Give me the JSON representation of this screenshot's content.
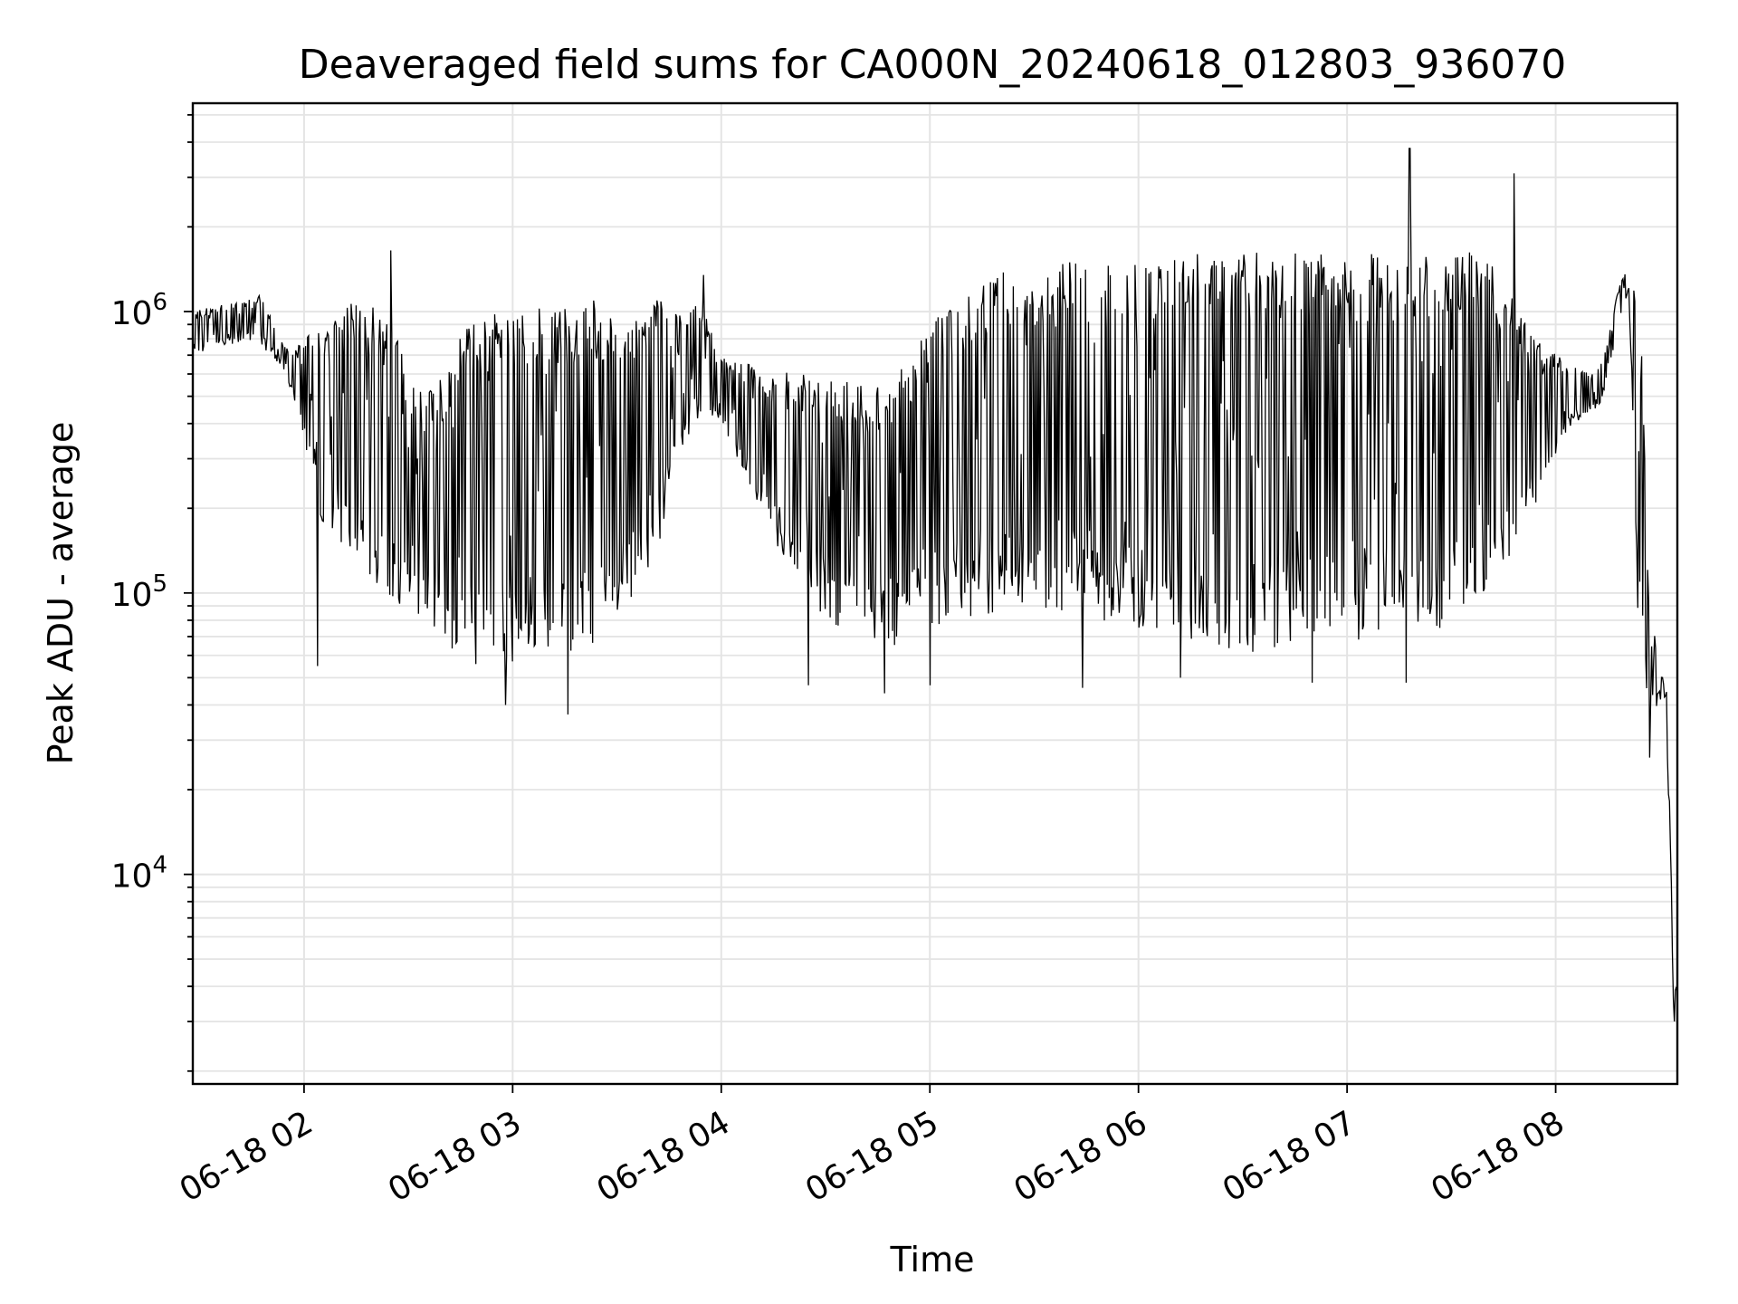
{
  "chart_data": {
    "type": "line",
    "title": "Deaveraged field sums for CA000N_20240618_012803_936070",
    "xlabel": "Time",
    "ylabel": "Peak ADU - average",
    "yscale": "log",
    "ylim": [
      1800,
      5500000
    ],
    "xlim": [
      "06-18 01:28",
      "06-18 08:35"
    ],
    "grid": true,
    "line_color": "#000000",
    "grid_color": "#e4e4e4",
    "x_ticks": [
      {
        "t": "06-18 02:00",
        "label": "06-18 02"
      },
      {
        "t": "06-18 03:00",
        "label": "06-18 03"
      },
      {
        "t": "06-18 04:00",
        "label": "06-18 04"
      },
      {
        "t": "06-18 05:00",
        "label": "06-18 05"
      },
      {
        "t": "06-18 06:00",
        "label": "06-18 06"
      },
      {
        "t": "06-18 07:00",
        "label": "06-18 07"
      },
      {
        "t": "06-18 08:00",
        "label": "06-18 08"
      }
    ],
    "y_ticks": [
      {
        "value": 10000,
        "base": "10",
        "exp": "4"
      },
      {
        "value": 100000,
        "base": "10",
        "exp": "5"
      },
      {
        "value": 1000000,
        "base": "10",
        "exp": "6"
      }
    ],
    "series": [
      {
        "name": "",
        "x": [
          "06-18 01:28",
          "06-18 01:35",
          "06-18 01:42",
          "06-18 01:48",
          "06-18 01:53",
          "06-18 01:57",
          "06-18 02:00",
          "06-18 02:05",
          "06-18 02:10",
          "06-18 02:15",
          "06-18 02:20",
          "06-18 02:25",
          "06-18 02:30",
          "06-18 02:35",
          "06-18 02:40",
          "06-18 02:45",
          "06-18 02:50",
          "06-18 02:55",
          "06-18 03:00",
          "06-18 03:05",
          "06-18 03:10",
          "06-18 03:15",
          "06-18 03:20",
          "06-18 03:25",
          "06-18 03:30",
          "06-18 03:35",
          "06-18 03:40",
          "06-18 03:45",
          "06-18 03:50",
          "06-18 03:55",
          "06-18 04:00",
          "06-18 04:10",
          "06-18 04:20",
          "06-18 04:30",
          "06-18 04:40",
          "06-18 04:50",
          "06-18 05:00",
          "06-18 05:10",
          "06-18 05:20",
          "06-18 05:30",
          "06-18 05:40",
          "06-18 05:50",
          "06-18 06:00",
          "06-18 06:10",
          "06-18 06:20",
          "06-18 06:30",
          "06-18 06:40",
          "06-18 06:50",
          "06-18 07:00",
          "06-18 07:10",
          "06-18 07:20",
          "06-18 07:30",
          "06-18 07:40",
          "06-18 07:50",
          "06-18 08:00",
          "06-18 08:05",
          "06-18 08:10",
          "06-18 08:14",
          "06-18 08:18",
          "06-18 08:21",
          "06-18 08:24",
          "06-18 08:27",
          "06-18 08:30",
          "06-18 08:32",
          "06-18 08:34"
        ],
        "y_low": [
          700000,
          750000,
          780000,
          740000,
          650000,
          500000,
          350000,
          180000,
          150000,
          120000,
          100000,
          95000,
          85000,
          75000,
          65000,
          60000,
          55000,
          52000,
          55000,
          60000,
          55000,
          58000,
          60000,
          65000,
          75000,
          90000,
          120000,
          200000,
          350000,
          450000,
          400000,
          200000,
          120000,
          80000,
          70000,
          65000,
          75000,
          80000,
          85000,
          90000,
          85000,
          80000,
          70000,
          65000,
          62000,
          60000,
          60000,
          62000,
          65000,
          70000,
          72000,
          75000,
          85000,
          150000,
          300000,
          400000,
          420000,
          500000,
          900000,
          1200000,
          60000,
          35000,
          42000,
          30000,
          3000
        ],
        "y_high": [
          1000000,
          1050000,
          1100000,
          1150000,
          800000,
          700000,
          850000,
          900000,
          1000000,
          1100000,
          1050000,
          900000,
          650000,
          500000,
          600000,
          900000,
          1000000,
          1000000,
          950000,
          1000000,
          1050000,
          1050000,
          1100000,
          1100000,
          1050000,
          1050000,
          1100000,
          1100000,
          1100000,
          1000000,
          700000,
          650000,
          600000,
          600000,
          550000,
          600000,
          900000,
          1200000,
          1400000,
          1400000,
          1500000,
          1500000,
          1500000,
          1600000,
          1650000,
          1700000,
          1700000,
          1650000,
          1600000,
          1650000,
          1600000,
          1650000,
          1650000,
          1000000,
          700000,
          650000,
          600000,
          700000,
          1200000,
          1500000,
          1400000,
          90000,
          55000,
          45000,
          4000
        ],
        "spikes_up": [
          {
            "x": "06-18 02:25",
            "y": 1650000
          },
          {
            "x": "06-18 03:55",
            "y": 1350000
          },
          {
            "x": "06-18 07:18",
            "y": 3800000
          },
          {
            "x": "06-18 07:48",
            "y": 3100000
          }
        ],
        "spikes_down": [
          {
            "x": "06-18 02:04",
            "y": 55000
          },
          {
            "x": "06-18 02:58",
            "y": 40000
          },
          {
            "x": "06-18 03:16",
            "y": 37000
          },
          {
            "x": "06-18 04:25",
            "y": 47000
          },
          {
            "x": "06-18 04:47",
            "y": 44000
          },
          {
            "x": "06-18 05:00",
            "y": 47000
          },
          {
            "x": "06-18 05:44",
            "y": 46000
          },
          {
            "x": "06-18 06:12",
            "y": 50000
          },
          {
            "x": "06-18 06:50",
            "y": 48000
          },
          {
            "x": "06-18 07:17",
            "y": 48000
          },
          {
            "x": "06-18 08:27",
            "y": 26000
          }
        ]
      }
    ]
  }
}
